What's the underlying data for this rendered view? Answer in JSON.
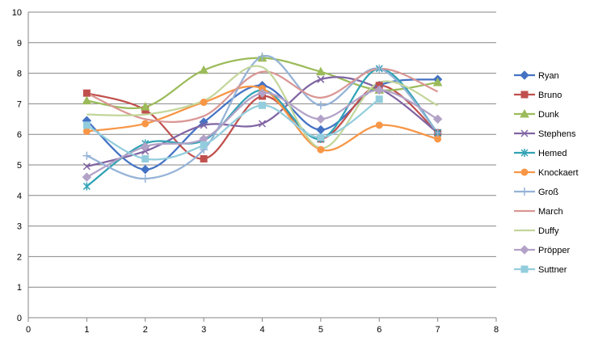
{
  "chart_data": {
    "type": "line",
    "title": "",
    "xlabel": "",
    "ylabel": "",
    "xlim": [
      0,
      8
    ],
    "ylim": [
      0,
      10
    ],
    "x_ticks": [
      0,
      1,
      2,
      3,
      4,
      5,
      6,
      7,
      8
    ],
    "y_ticks": [
      0,
      1,
      2,
      3,
      4,
      5,
      6,
      7,
      8,
      9,
      10
    ],
    "grid": "horizontal",
    "smooth": true,
    "legend_position": "right",
    "series": [
      {
        "name": "Ryan",
        "color": "#4472C4",
        "marker": "diamond",
        "x": [
          1,
          2,
          3,
          4,
          5,
          6,
          7
        ],
        "y": [
          6.45,
          4.85,
          6.4,
          7.6,
          6.15,
          7.6,
          7.8
        ]
      },
      {
        "name": "Bruno",
        "color": "#C0504D",
        "marker": "square",
        "x": [
          1,
          2,
          3,
          4,
          5,
          6,
          7
        ],
        "y": [
          7.35,
          6.8,
          5.2,
          7.25,
          5.85,
          7.6,
          6.05
        ]
      },
      {
        "name": "Dunk",
        "color": "#9BBB59",
        "marker": "triangle",
        "x": [
          1,
          2,
          3,
          4,
          5,
          6,
          7
        ],
        "y": [
          7.1,
          6.9,
          8.1,
          8.5,
          8.05,
          7.45,
          7.7
        ]
      },
      {
        "name": "Stephens",
        "color": "#8064A2",
        "marker": "x",
        "x": [
          1,
          2,
          3,
          4,
          5,
          6,
          7
        ],
        "y": [
          4.95,
          5.45,
          6.3,
          6.35,
          7.8,
          7.5,
          6.05
        ]
      },
      {
        "name": "Hemed",
        "color": "#31A3B5",
        "marker": "star",
        "x": [
          1,
          2,
          3,
          4,
          5,
          6,
          7
        ],
        "y": [
          4.3,
          5.7,
          5.8,
          7.45,
          5.85,
          8.15,
          6.05
        ]
      },
      {
        "name": "Knockaert",
        "color": "#F79646",
        "marker": "circle",
        "x": [
          1,
          2,
          3,
          4,
          5,
          6,
          7
        ],
        "y": [
          6.1,
          6.35,
          7.05,
          7.5,
          5.5,
          6.3,
          5.85
        ]
      },
      {
        "name": "Groß",
        "color": "#95B3D7",
        "marker": "plus",
        "x": [
          1,
          2,
          3,
          4,
          5,
          6,
          7
        ],
        "y": [
          5.3,
          4.55,
          5.5,
          8.55,
          6.95,
          8.15,
          6.05
        ]
      },
      {
        "name": "March",
        "color": "#D99694",
        "marker": "none",
        "x": [
          1,
          2,
          3,
          4,
          5,
          6,
          7
        ],
        "y": [
          7.35,
          6.5,
          6.6,
          8.05,
          7.2,
          8.15,
          7.4
        ]
      },
      {
        "name": "Duffy",
        "color": "#C3D69B",
        "marker": "none",
        "x": [
          1,
          2,
          3,
          4,
          5,
          6,
          7
        ],
        "y": [
          6.65,
          6.65,
          7.1,
          8.2,
          5.55,
          7.7,
          6.95
        ]
      },
      {
        "name": "Pröpper",
        "color": "#B3A2C7",
        "marker": "diamond",
        "x": [
          1,
          2,
          3,
          4,
          5,
          6,
          7
        ],
        "y": [
          4.6,
          5.6,
          5.85,
          7.35,
          6.5,
          7.45,
          6.5
        ]
      },
      {
        "name": "Suttner",
        "color": "#93CDDD",
        "marker": "square",
        "x": [
          1,
          2,
          3,
          4,
          5,
          6
        ],
        "y": [
          6.3,
          5.2,
          5.65,
          6.95,
          5.9,
          7.15
        ]
      }
    ]
  }
}
